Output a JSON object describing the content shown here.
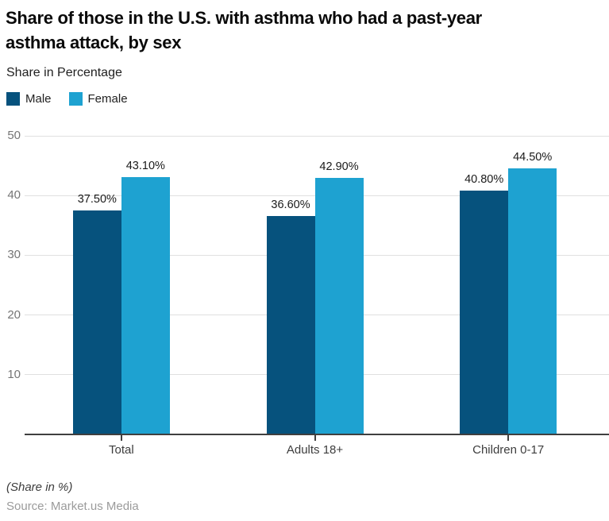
{
  "header": {
    "title_lines": [
      "Share of those in the U.S. with asthma who had a past-year",
      "asthma attack, by sex"
    ],
    "subtitle": "Share in Percentage"
  },
  "chart_data": {
    "type": "bar",
    "title": "Share of those in the U.S. with asthma who had a past-year asthma attack, by sex",
    "subtitle": "Share in Percentage",
    "categories": [
      "Total",
      "Adults 18+",
      "Children 0-17"
    ],
    "series": [
      {
        "name": "Male",
        "color": "#06527d",
        "values": [
          37.5,
          36.6,
          40.8
        ],
        "labels": [
          "37.50%",
          "36.60%",
          "40.80%"
        ]
      },
      {
        "name": "Female",
        "color": "#1ea2d1",
        "values": [
          43.1,
          42.9,
          44.5
        ],
        "labels": [
          "43.10%",
          "42.90%",
          "44.50%"
        ]
      }
    ],
    "ylabel": "Share in Percentage",
    "ylim": [
      0,
      50
    ],
    "yticks": [
      10,
      20,
      30,
      40,
      50
    ],
    "grid": true,
    "legend_position": "top-left"
  },
  "footer": {
    "note": "(Share in %)",
    "source": "Source: Market.us Media"
  },
  "colors": {
    "male": "#06527d",
    "female": "#1ea2d1",
    "gridline": "#e0e0e0",
    "axis": "#3f3f3f",
    "tick_label": "#757575",
    "category_label": "#3d3d3d",
    "value_label": "#1a1a1a"
  }
}
